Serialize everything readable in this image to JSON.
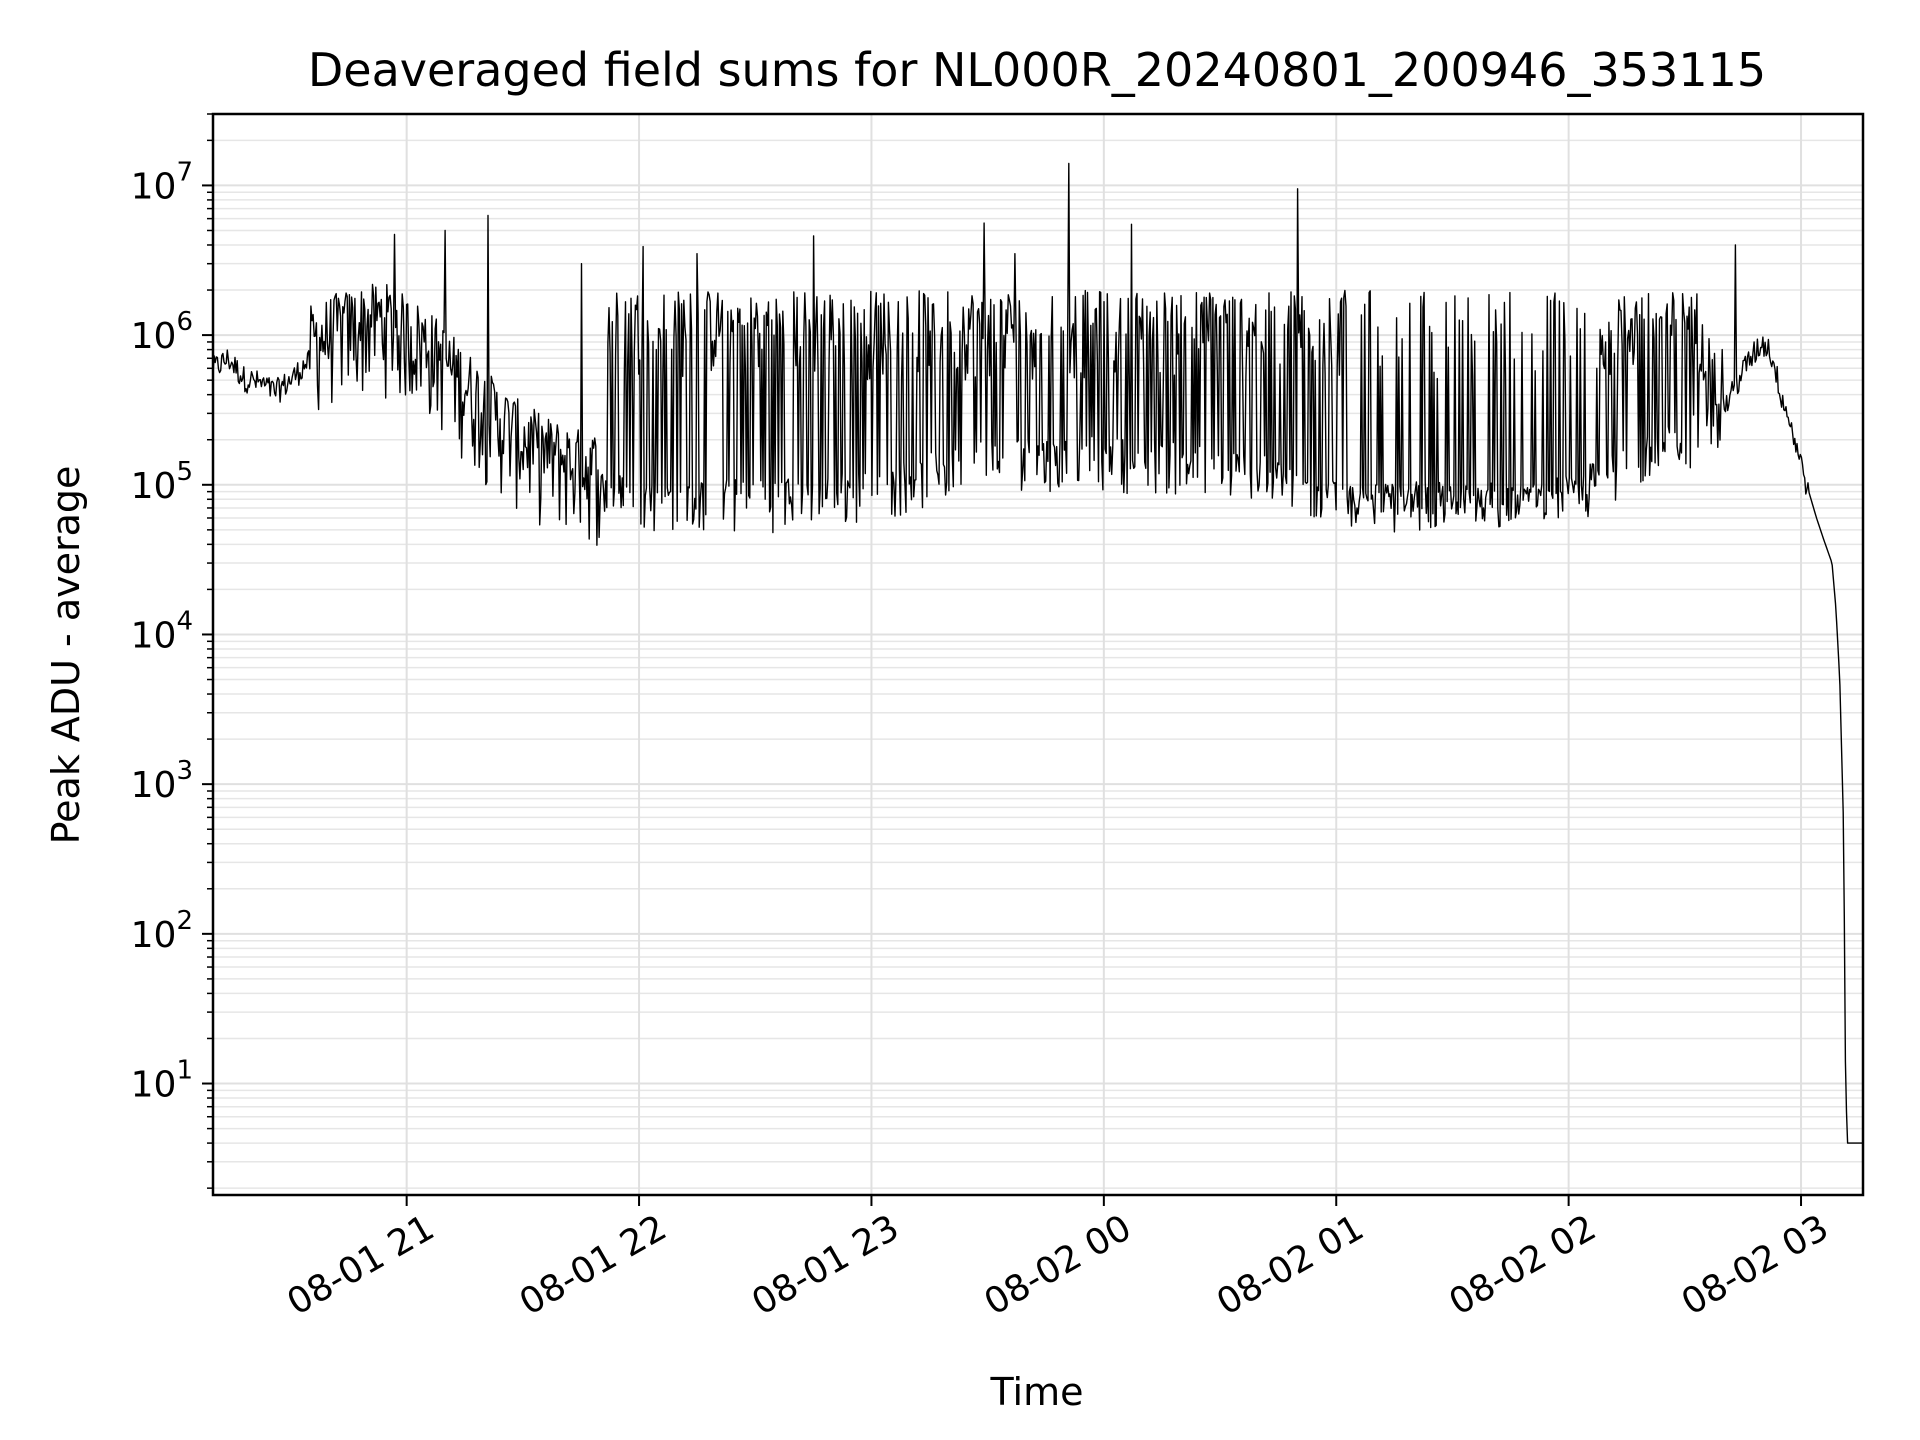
{
  "chart_data": {
    "type": "line",
    "title": "Deaveraged field sums for NL000R_20240801_200946_353115",
    "xlabel": "Time",
    "ylabel": "Peak ADU - average",
    "x_scale": "time",
    "y_scale": "log",
    "xlim": [
      "2024-08-01 20:10",
      "2024-08-02 03:16"
    ],
    "ylim": [
      1.8,
      30000000
    ],
    "grid": true,
    "x_ticks": [
      {
        "value": "2024-08-01 21:00",
        "label": "08-01 21"
      },
      {
        "value": "2024-08-01 22:00",
        "label": "08-01 22"
      },
      {
        "value": "2024-08-01 23:00",
        "label": "08-01 23"
      },
      {
        "value": "2024-08-02 00:00",
        "label": "08-02 00"
      },
      {
        "value": "2024-08-02 01:00",
        "label": "08-02 01"
      },
      {
        "value": "2024-08-02 02:00",
        "label": "08-02 02"
      },
      {
        "value": "2024-08-02 03:00",
        "label": "08-02 03"
      }
    ],
    "y_ticks": [
      {
        "value": 10,
        "base": "10",
        "exp": "1"
      },
      {
        "value": 100,
        "base": "10",
        "exp": "2"
      },
      {
        "value": 1000,
        "base": "10",
        "exp": "3"
      },
      {
        "value": 10000,
        "base": "10",
        "exp": "4"
      },
      {
        "value": 100000,
        "base": "10",
        "exp": "5"
      },
      {
        "value": 1000000,
        "base": "10",
        "exp": "6"
      },
      {
        "value": 10000000,
        "base": "10",
        "exp": "7"
      }
    ],
    "series": [
      {
        "color": "#000000",
        "points": [
          [
            "2024-08-01 20:10",
            600000
          ],
          [
            "2024-08-01 20:14",
            700000
          ],
          [
            "2024-08-01 20:18",
            520000
          ],
          [
            "2024-08-01 20:22",
            480000
          ],
          [
            "2024-08-01 20:26",
            420000
          ],
          [
            "2024-08-01 20:30",
            500000
          ],
          [
            "2024-08-01 20:34",
            650000
          ],
          [
            "2024-08-01 20:38",
            700000
          ],
          [
            "2024-08-01 20:42",
            800000
          ],
          [
            "2024-08-01 20:46",
            850000
          ],
          [
            "2024-08-01 20:50",
            900000
          ],
          [
            "2024-08-01 20:54",
            950000
          ],
          [
            "2024-08-01 20:58",
            820000
          ],
          [
            "2024-08-01 21:05",
            650000
          ],
          [
            "2024-08-01 21:12",
            420000
          ],
          [
            "2024-08-01 21:20",
            250000
          ],
          [
            "2024-08-01 21:28",
            160000
          ],
          [
            "2024-08-01 21:36",
            120000
          ],
          [
            "2024-08-01 21:44",
            100000
          ],
          [
            "2024-08-01 21:52",
            90000
          ],
          [
            "2024-08-01 22:00",
            80000
          ],
          [
            "2024-08-01 22:30",
            78000
          ],
          [
            "2024-08-01 23:00",
            90000
          ],
          [
            "2024-08-01 23:30",
            150000
          ],
          [
            "2024-08-02 00:00",
            150000
          ],
          [
            "2024-08-02 00:30",
            130000
          ],
          [
            "2024-08-02 00:50",
            100000
          ],
          [
            "2024-08-02 01:00",
            80000
          ],
          [
            "2024-08-02 01:30",
            75000
          ],
          [
            "2024-08-02 01:50",
            78000
          ],
          [
            "2024-08-02 02:00",
            90000
          ],
          [
            "2024-08-02 02:10",
            110000
          ],
          [
            "2024-08-02 02:20",
            150000
          ],
          [
            "2024-08-02 02:30",
            200000
          ],
          [
            "2024-08-02 02:38",
            260000
          ],
          [
            "2024-08-02 02:42",
            400000
          ],
          [
            "2024-08-02 02:46",
            650000
          ],
          [
            "2024-08-02 02:50",
            900000
          ],
          [
            "2024-08-02 02:52",
            800000
          ],
          [
            "2024-08-02 02:55",
            400000
          ],
          [
            "2024-08-02 02:58",
            220000
          ],
          [
            "2024-08-02 03:00",
            140000
          ],
          [
            "2024-08-02 03:02",
            90000
          ],
          [
            "2024-08-02 03:04",
            60000
          ],
          [
            "2024-08-02 03:06",
            42000
          ],
          [
            "2024-08-02 03:08",
            30000
          ],
          [
            "2024-08-02 03:09",
            15000
          ],
          [
            "2024-08-02 03:10",
            5000
          ],
          [
            "2024-08-02 03:11",
            500
          ],
          [
            "2024-08-02 03:11.5",
            10
          ],
          [
            "2024-08-02 03:12",
            4
          ],
          [
            "2024-08-02 03:16",
            4
          ]
        ],
        "spikes": [
          [
            "2024-08-01 20:57",
            4700000
          ],
          [
            "2024-08-01 21:10",
            5000000
          ],
          [
            "2024-08-01 21:21",
            6300000
          ],
          [
            "2024-08-01 21:45",
            3000000
          ],
          [
            "2024-08-01 22:01",
            3900000
          ],
          [
            "2024-08-01 22:15",
            3500000
          ],
          [
            "2024-08-01 22:45",
            4600000
          ],
          [
            "2024-08-01 23:29",
            5600000
          ],
          [
            "2024-08-01 23:37",
            3500000
          ],
          [
            "2024-08-01 23:51",
            14000000
          ],
          [
            "2024-08-02 00:07",
            5500000
          ],
          [
            "2024-08-02 00:50",
            9500000
          ],
          [
            "2024-08-02 02:43",
            4000000
          ]
        ]
      }
    ]
  }
}
